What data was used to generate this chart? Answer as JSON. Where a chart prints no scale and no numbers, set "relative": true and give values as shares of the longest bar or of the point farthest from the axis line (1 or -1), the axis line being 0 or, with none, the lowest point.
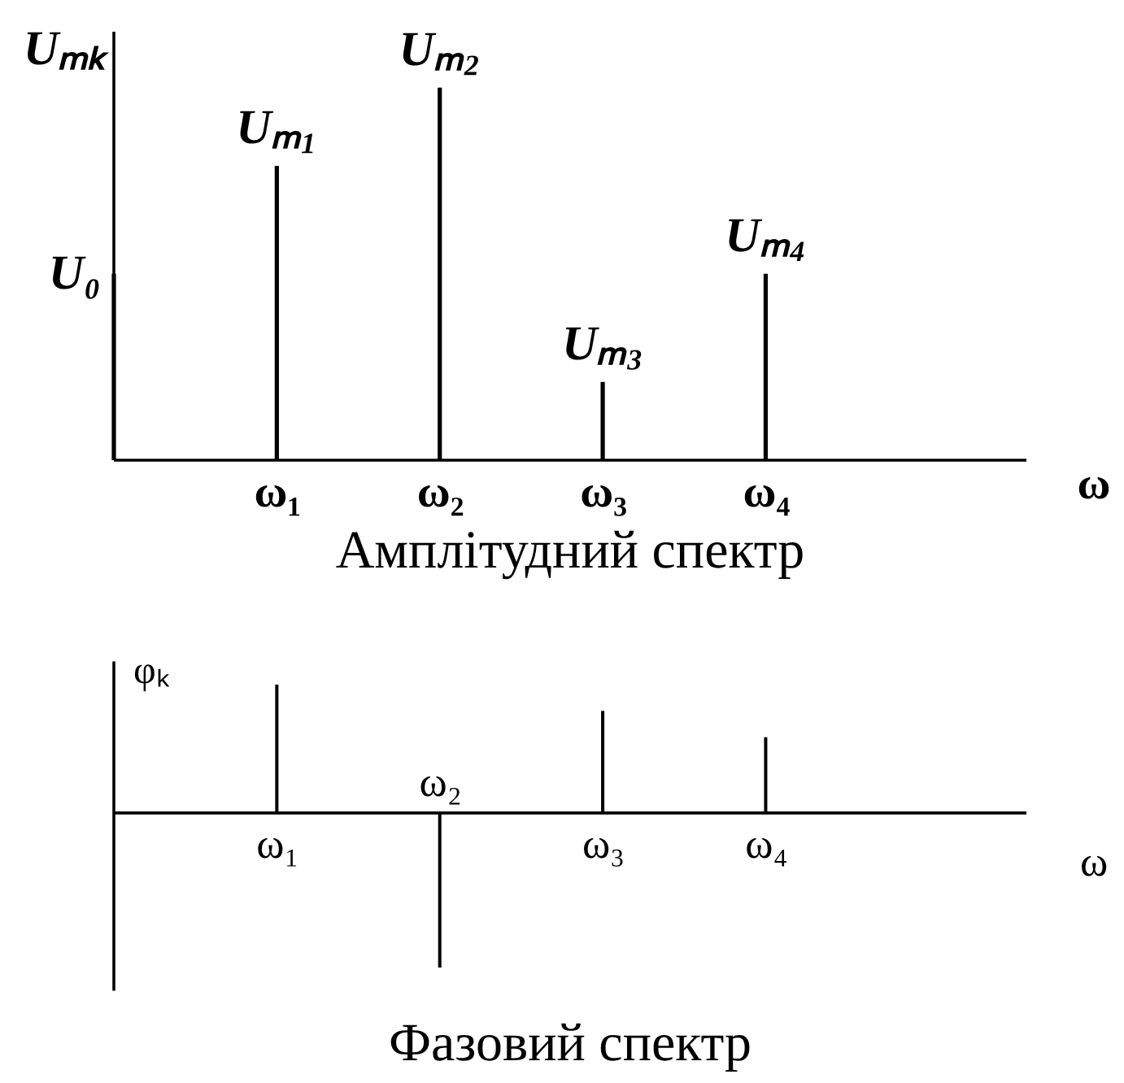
{
  "chart_data": [
    {
      "type": "bar",
      "title": "Амплітудний спектр",
      "xlabel": "ω",
      "ylabel": "Uₘₖ",
      "categories": [
        null,
        "ω₁",
        "ω₂",
        "ω₃",
        "ω₄"
      ],
      "values": [
        0.5,
        0.79,
        1,
        0.21,
        0.5
      ],
      "color": "#000000",
      "relative": true,
      "annotations": [
        "U₀",
        "Uₘ₁",
        "Uₘ₂",
        "Uₘ₃",
        "Uₘ₄"
      ]
    },
    {
      "type": "bar",
      "title": "Фазовий спектр",
      "xlabel": "ω",
      "ylabel": "φₖ",
      "categories": [
        "ω₁",
        "ω₂",
        "ω₃",
        "ω₄"
      ],
      "values": [
        0.83,
        -1,
        0.66,
        0.49
      ],
      "color": "#000000",
      "relative": true
    }
  ]
}
